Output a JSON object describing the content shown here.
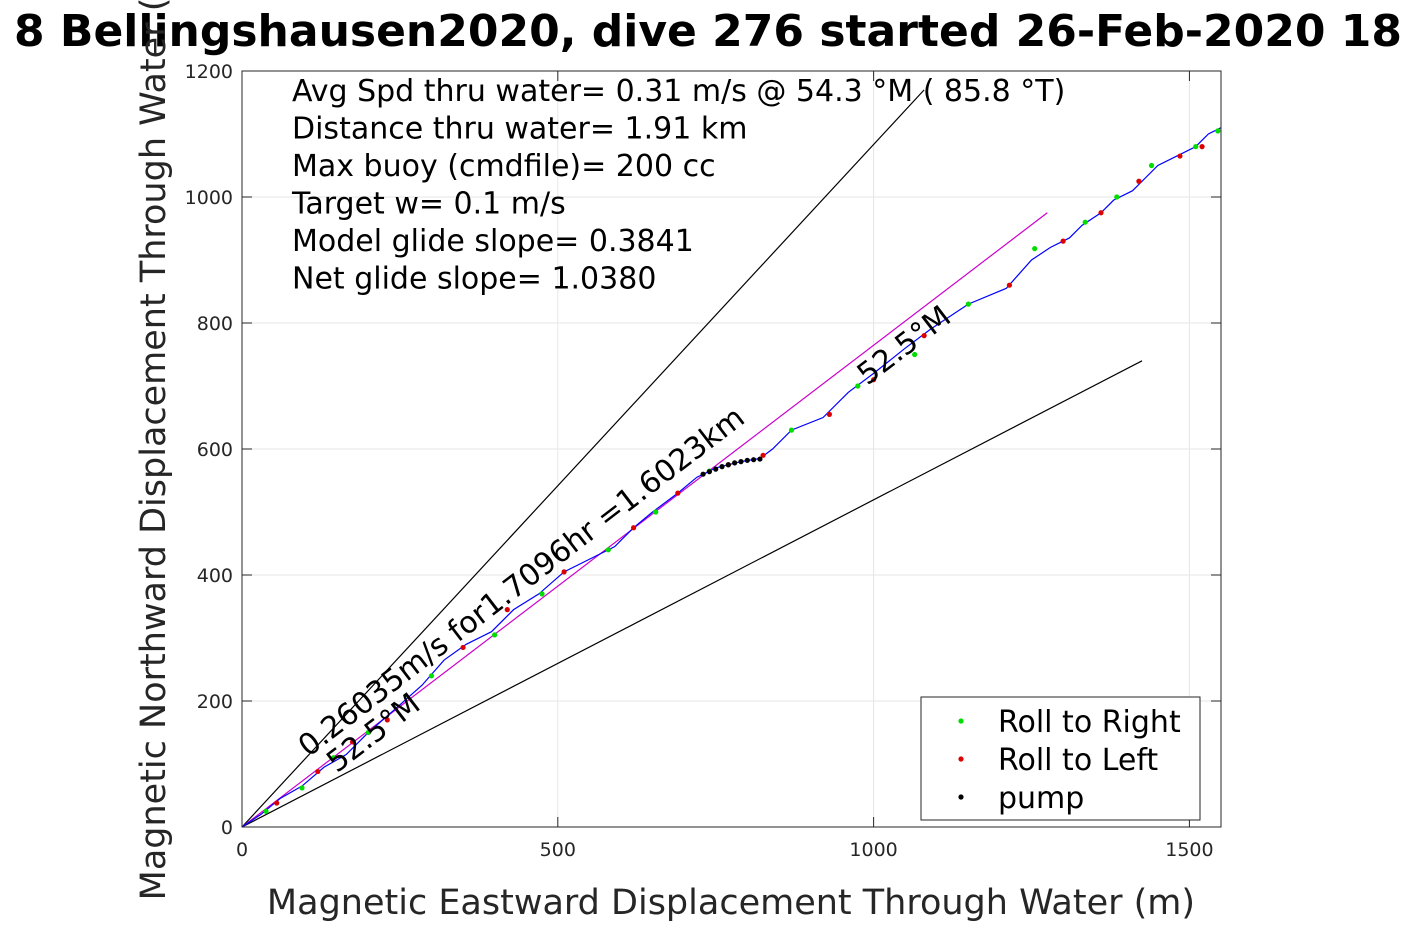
{
  "chart_data": {
    "type": "line",
    "title": "8 Bellingshausen2020, dive 276 started 26-Feb-2020 18",
    "xlabel": "Magnetic Eastward Displacement Through Water (m)",
    "ylabel": "Magnetic Northward Displacement Through Water (",
    "xlim": [
      0,
      1550
    ],
    "ylim": [
      0,
      1200
    ],
    "xticks": [
      0,
      500,
      1000,
      1500
    ],
    "xtick_labels": [
      "0",
      "500",
      "1000",
      "1500"
    ],
    "yticks": [
      0,
      200,
      400,
      600,
      800,
      1000,
      1200
    ],
    "ytick_labels": [
      "0",
      "200",
      "400",
      "600",
      "800",
      "1000",
      "1200"
    ],
    "grid": true,
    "legend_placement": "bottom-right",
    "info_lines": [
      "Avg Spd thru water=  0.31 m/s @  54.3 °M ( 85.8 °T)",
      "Distance thru water=  1.91 km",
      "Max buoy (cmdfile)= 200 cc",
      "Target w= 0.1 m/s",
      "Model glide slope= 0.3841",
      "Net glide slope= 1.0380"
    ],
    "annotations": [
      {
        "text": "0.26035m/s for1.7096hr =1.6023km",
        "x": 105,
        "y": 110,
        "angle": 37.5
      },
      {
        "text": "52.5°M",
        "x": 150,
        "y": 85,
        "angle": 37.5
      },
      {
        "text": "52.5°M",
        "x": 990,
        "y": 700,
        "angle": 37.5
      }
    ],
    "reference_lines": [
      {
        "name": "upper",
        "x": [
          0,
          1080
        ],
        "y": [
          0,
          1170
        ],
        "color": "#000000"
      },
      {
        "name": "lower",
        "x": [
          0,
          1425
        ],
        "y": [
          0,
          740
        ],
        "color": "#000000"
      },
      {
        "name": "mean",
        "x": [
          0,
          1275
        ],
        "y": [
          0,
          975
        ],
        "color": "#cc00cc"
      }
    ],
    "track": {
      "color": "#0000ff",
      "x": [
        0,
        30,
        60,
        95,
        130,
        165,
        200,
        240,
        285,
        320,
        355,
        395,
        430,
        470,
        510,
        550,
        590,
        620,
        650,
        690,
        720,
        750,
        790,
        820,
        840,
        870,
        920,
        960,
        1000,
        1050,
        1090,
        1150,
        1210,
        1250,
        1280,
        1310,
        1330,
        1360,
        1380,
        1410,
        1450,
        1480,
        1510,
        1530,
        1550
      ],
      "y": [
        0,
        20,
        45,
        65,
        95,
        115,
        150,
        185,
        225,
        265,
        290,
        310,
        345,
        370,
        405,
        425,
        445,
        475,
        500,
        530,
        555,
        570,
        580,
        585,
        600,
        630,
        650,
        690,
        720,
        760,
        790,
        830,
        855,
        900,
        920,
        935,
        955,
        975,
        995,
        1010,
        1050,
        1065,
        1080,
        1100,
        1110
      ]
    },
    "series": [
      {
        "name": "Roll to Right",
        "color": "#00dd00",
        "x": [
          38,
          95,
          145,
          200,
          300,
          400,
          475,
          580,
          655,
          740,
          870,
          975,
          1065,
          1150,
          1255,
          1335,
          1385,
          1440,
          1510,
          1545
        ],
        "y": [
          25,
          62,
          110,
          150,
          240,
          305,
          370,
          440,
          500,
          565,
          630,
          700,
          750,
          830,
          918,
          960,
          1000,
          1050,
          1080,
          1105
        ]
      },
      {
        "name": "Roll to Left",
        "color": "#dd0000",
        "x": [
          55,
          120,
          175,
          230,
          350,
          420,
          510,
          620,
          690,
          770,
          825,
          930,
          1000,
          1080,
          1215,
          1300,
          1360,
          1420,
          1485,
          1520
        ],
        "y": [
          38,
          88,
          135,
          170,
          285,
          345,
          405,
          475,
          530,
          575,
          590,
          655,
          710,
          780,
          860,
          930,
          975,
          1025,
          1065,
          1080
        ]
      },
      {
        "name": "pump",
        "color": "#000000",
        "x": [
          730,
          740,
          750,
          760,
          770,
          780,
          790,
          800,
          810,
          820
        ],
        "y": [
          560,
          564,
          568,
          572,
          575,
          578,
          580,
          582,
          583,
          584
        ]
      }
    ]
  }
}
